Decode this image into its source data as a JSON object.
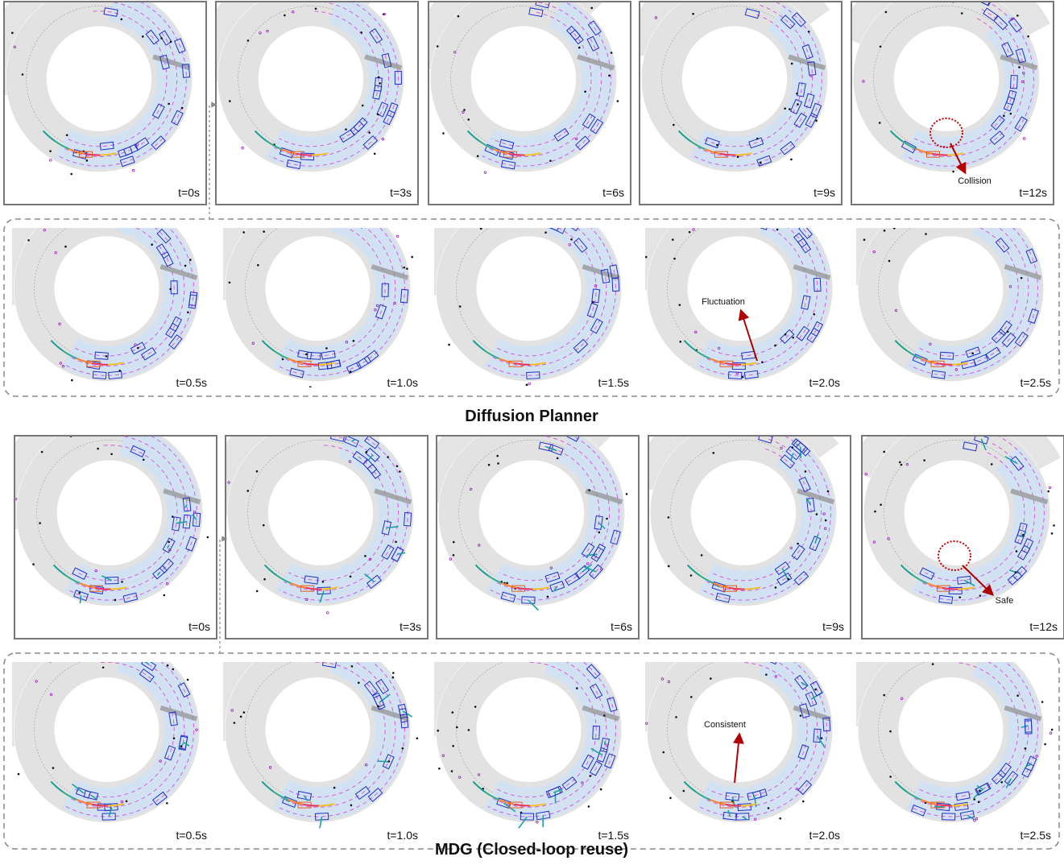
{
  "sections": [
    {
      "title": "Diffusion Planner",
      "main_panels": [
        "t=0s",
        "t=3s",
        "t=6s",
        "t=9s",
        "t=12s"
      ],
      "sub_panels": [
        "t=0.5s",
        "t=1.0s",
        "t=1.5s",
        "t=2.0s",
        "t=2.5s"
      ],
      "annotations": [
        "Collision",
        "Fluctuation"
      ]
    },
    {
      "title": "MDG (Closed-loop reuse)",
      "main_panels": [
        "t=0s",
        "t=3s",
        "t=6s",
        "t=9s",
        "t=12s"
      ],
      "sub_panels": [
        "t=0.5s",
        "t=1.0s",
        "t=1.5s",
        "t=2.0s",
        "t=2.5s"
      ],
      "annotations": [
        "Safe",
        "Consistent"
      ]
    }
  ]
}
